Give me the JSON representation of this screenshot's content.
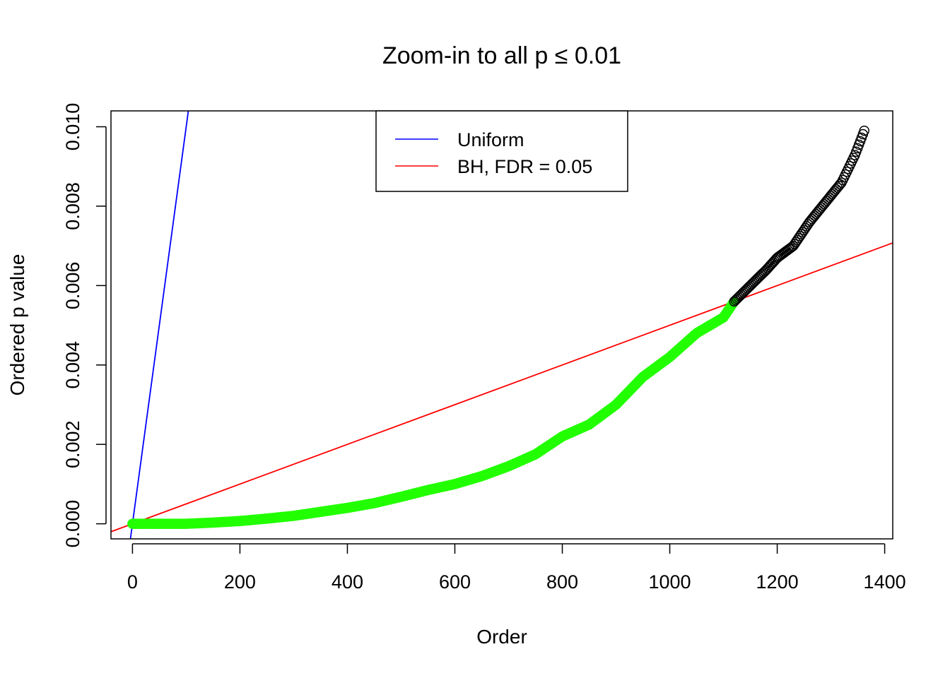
{
  "chart_data": {
    "type": "scatter",
    "title": "Zoom-in to all p ≤ 0.01",
    "xlabel": "Order",
    "ylabel": "Ordered p value",
    "xlim": [
      -40,
      1415
    ],
    "ylim": [
      -0.00038,
      0.0104
    ],
    "xticks": [
      0,
      200,
      400,
      600,
      800,
      1000,
      1200,
      1400
    ],
    "yticks": [
      0.0,
      0.002,
      0.004,
      0.006,
      0.008,
      0.01
    ],
    "xtick_labels": [
      "0",
      "200",
      "400",
      "600",
      "800",
      "1000",
      "1200",
      "1400"
    ],
    "ytick_labels": [
      "0.000",
      "0.002",
      "0.004",
      "0.006",
      "0.008",
      "0.010"
    ],
    "grid": false,
    "legend": {
      "position": "top-center",
      "entries": [
        {
          "label": "Uniform",
          "color": "#0000ff"
        },
        {
          "label": "BH, FDR = 0.05",
          "color": "#ff0000"
        }
      ]
    },
    "lines": [
      {
        "name": "Uniform",
        "color": "#0000ff",
        "slope": 0.0001,
        "intercept": 0
      },
      {
        "name": "BH, FDR = 0.05",
        "color": "#ff0000",
        "slope": 5e-06,
        "intercept": 0
      }
    ],
    "series": [
      {
        "name": "significant",
        "color": "#22ff00",
        "marker": "filled-circle",
        "x": [
          0,
          50,
          100,
          150,
          200,
          250,
          300,
          350,
          400,
          450,
          500,
          550,
          600,
          650,
          700,
          750,
          800,
          850,
          900,
          950,
          1000,
          1050,
          1100,
          1120
        ],
        "y": [
          0.0,
          0.0,
          0.0,
          3e-05,
          7e-05,
          0.00013,
          0.0002,
          0.0003,
          0.0004,
          0.00052,
          0.00068,
          0.00085,
          0.001,
          0.0012,
          0.00145,
          0.00175,
          0.0022,
          0.0025,
          0.003,
          0.0037,
          0.0042,
          0.0048,
          0.0052,
          0.0056
        ]
      },
      {
        "name": "not significant",
        "color": "#000000",
        "marker": "open-circle",
        "x": [
          1120,
          1150,
          1180,
          1200,
          1230,
          1260,
          1290,
          1320,
          1345,
          1362
        ],
        "y": [
          0.0056,
          0.006,
          0.0064,
          0.0067,
          0.007,
          0.0076,
          0.0081,
          0.0086,
          0.0093,
          0.0099
        ]
      }
    ]
  }
}
